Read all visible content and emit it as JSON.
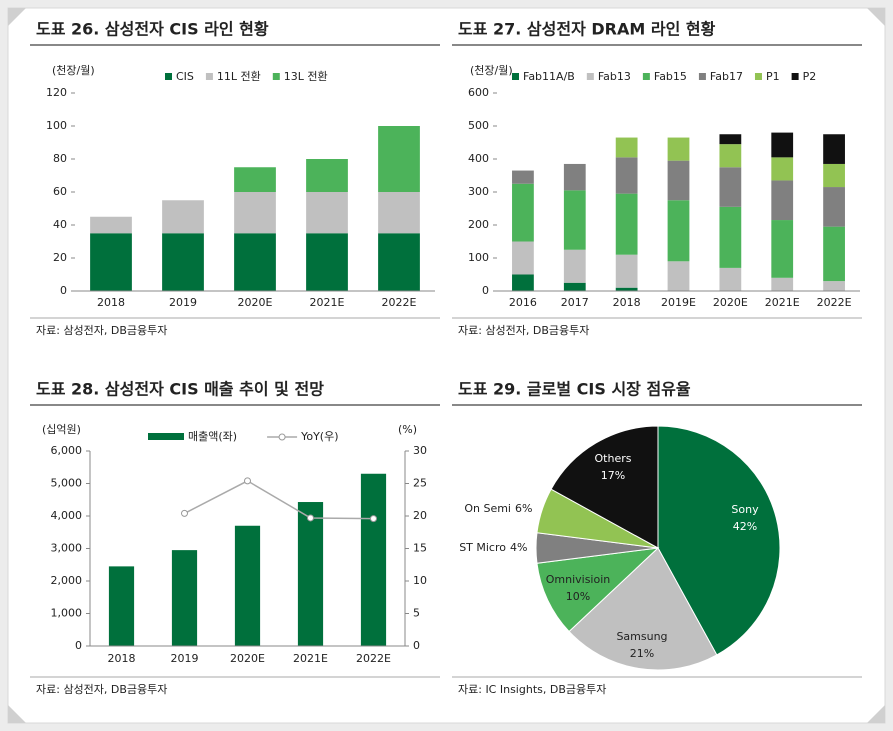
{
  "chart_data": [
    {
      "type": "bar",
      "stacked": true,
      "title": "도표 26. 삼성전자 CIS 라인 현황",
      "y_unit": "(천장/월)",
      "source": "자료: 삼성전자, DB금융투자",
      "categories": [
        "2018",
        "2019",
        "2020E",
        "2021E",
        "2022E"
      ],
      "series": [
        {
          "name": "CIS",
          "color": "#00703c",
          "values": [
            35,
            35,
            35,
            35,
            35
          ]
        },
        {
          "name": "11L 전환",
          "color": "#c0c0c0",
          "values": [
            10,
            20,
            25,
            25,
            25
          ]
        },
        {
          "name": "13L 전환",
          "color": "#4cb35a",
          "values": [
            0,
            0,
            15,
            20,
            40
          ]
        }
      ],
      "ylim": [
        0,
        120
      ],
      "yticks": [
        0,
        20,
        40,
        60,
        80,
        100,
        120
      ]
    },
    {
      "type": "bar",
      "stacked": true,
      "title": "도표 27. 삼성전자 DRAM 라인 현황",
      "y_unit": "(천장/월)",
      "source": "자료: 삼성전자, DB금융투자",
      "categories": [
        "2016",
        "2017",
        "2018",
        "2019E",
        "2020E",
        "2021E",
        "2022E"
      ],
      "series": [
        {
          "name": "Fab11A/B",
          "color": "#00703c",
          "values": [
            50,
            25,
            10,
            0,
            0,
            0,
            0
          ]
        },
        {
          "name": "Fab13",
          "color": "#c0c0c0",
          "values": [
            100,
            100,
            100,
            90,
            70,
            40,
            30
          ]
        },
        {
          "name": "Fab15",
          "color": "#4cb35a",
          "values": [
            175,
            180,
            185,
            185,
            185,
            175,
            165
          ]
        },
        {
          "name": "Fab17",
          "color": "#808080",
          "values": [
            40,
            80,
            110,
            120,
            120,
            120,
            120
          ]
        },
        {
          "name": "P1",
          "color": "#92c353",
          "values": [
            0,
            0,
            60,
            70,
            70,
            70,
            70
          ]
        },
        {
          "name": "P2",
          "color": "#111111",
          "values": [
            0,
            0,
            0,
            0,
            30,
            75,
            90
          ]
        }
      ],
      "ylim": [
        0,
        600
      ],
      "yticks": [
        0,
        100,
        200,
        300,
        400,
        500,
        600
      ]
    },
    {
      "type": "bar",
      "stacked": false,
      "title": "도표 28. 삼성전자 CIS 매출 추이 및 전망",
      "y_unit": "(십억원)",
      "y2_unit": "(%)",
      "source": "자료: 삼성전자, DB금융투자",
      "categories": [
        "2018",
        "2019",
        "2020E",
        "2021E",
        "2022E"
      ],
      "series": [
        {
          "name": "매출액(좌)",
          "color": "#00703c",
          "values": [
            2450,
            2950,
            3700,
            4430,
            5300
          ]
        },
        {
          "name": "YoY(우)",
          "color": "#aaaaaa",
          "type": "line",
          "axis": "y2",
          "values": [
            null,
            20.4,
            25.4,
            19.7,
            19.6
          ]
        }
      ],
      "ylim": [
        0,
        6000
      ],
      "yticks": [
        0,
        {
          "value": 1000,
          "label": "1,000"
        },
        {
          "value": 2000,
          "label": "2,000"
        },
        {
          "value": 3000,
          "label": "3,000"
        },
        {
          "value": 4000,
          "label": "4,000"
        },
        {
          "value": 5000,
          "label": "5,000"
        },
        {
          "value": 6000,
          "label": "6,000"
        }
      ],
      "y2lim": [
        0,
        30
      ],
      "y2ticks": [
        0,
        5,
        10,
        15,
        20,
        25,
        30
      ]
    },
    {
      "type": "pie",
      "title": "도표 29. 글로벌 CIS 시장 점유율",
      "source": "자료: IC Insights, DB금융투자",
      "categories": [
        "Sony",
        "Samsung",
        "Omnivisioin",
        "ST Micro",
        "On Semi",
        "Others"
      ],
      "values": [
        42,
        21,
        10,
        4,
        6,
        17
      ],
      "value_labels": [
        "42%",
        "21%",
        "10%",
        "4%",
        "6%",
        "17%"
      ],
      "colors": [
        "#00703c",
        "#c0c0c0",
        "#4cb35a",
        "#808080",
        "#92c353",
        "#111111"
      ]
    }
  ]
}
